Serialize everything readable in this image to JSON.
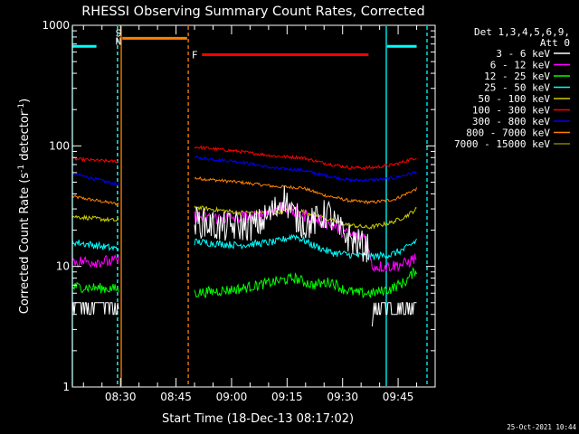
{
  "chart_data": {
    "type": "line",
    "title": "RHESSI Observing Summary Count Rates, Corrected",
    "xlabel": "Start Time (18-Dec-13 08:17:02)",
    "ylabel": "Corrected Count Rate (s",
    "ylabel_sup1": "-1",
    "ylabel_mid": " detector",
    "ylabel_sup2": "-1",
    "ylabel_end": ")",
    "y_scale": "log",
    "ylim": [
      1,
      1000
    ],
    "xlim_minutes": [
      0,
      98
    ],
    "x_ticks": [
      {
        "m": 13,
        "label": "08:30"
      },
      {
        "m": 28,
        "label": "08:45"
      },
      {
        "m": 43,
        "label": "09:00"
      },
      {
        "m": 58,
        "label": "09:15"
      },
      {
        "m": 73,
        "label": "09:30"
      },
      {
        "m": 88,
        "label": "09:45"
      }
    ],
    "y_ticks": [
      {
        "v": 1,
        "label": "1"
      },
      {
        "v": 10,
        "label": "10"
      },
      {
        "v": 100,
        "label": "100"
      },
      {
        "v": 1000,
        "label": "1000"
      }
    ],
    "legend": {
      "header1": "Det 1,3,4,5,6,9,",
      "header2": "Att 0",
      "placement": "right"
    },
    "series": [
      {
        "name": "3 - 6 keV",
        "color": "#ffffff",
        "noise": 0.3,
        "pts": [
          [
            0,
            5
          ],
          [
            10,
            5
          ],
          [
            11,
            5
          ],
          [
            12.5,
            4.5
          ],
          [
            33,
            24
          ],
          [
            40,
            21
          ],
          [
            50,
            22
          ],
          [
            55,
            30
          ],
          [
            57,
            38
          ],
          [
            60,
            26
          ],
          [
            63,
            22
          ],
          [
            66,
            24
          ],
          [
            69,
            28
          ],
          [
            72,
            20
          ],
          [
            75,
            17
          ],
          [
            78,
            15
          ],
          [
            80,
            14
          ],
          [
            81,
            4
          ],
          [
            90,
            4.5
          ],
          [
            93,
            5.5
          ]
        ],
        "gaps": [
          [
            12.5,
            33
          ],
          [
            80,
            81
          ]
        ]
      },
      {
        "name": "6 - 12 keV",
        "color": "#ff00ff",
        "noise": 0.12,
        "pts": [
          [
            0,
            11
          ],
          [
            12,
            11
          ],
          [
            33,
            26
          ],
          [
            40,
            25
          ],
          [
            50,
            26
          ],
          [
            57,
            32
          ],
          [
            60,
            28
          ],
          [
            65,
            25
          ],
          [
            70,
            22
          ],
          [
            75,
            18
          ],
          [
            79,
            18
          ],
          [
            81,
            10
          ],
          [
            85,
            10
          ],
          [
            90,
            10.5
          ],
          [
            93,
            12
          ]
        ],
        "gaps": [
          [
            12.5,
            33
          ]
        ]
      },
      {
        "name": "12 - 25 keV",
        "color": "#00ff00",
        "noise": 0.1,
        "pts": [
          [
            0,
            6.8
          ],
          [
            12,
            6.5
          ],
          [
            33,
            6
          ],
          [
            45,
            6.5
          ],
          [
            55,
            7.5
          ],
          [
            60,
            8
          ],
          [
            65,
            7
          ],
          [
            70,
            7.5
          ],
          [
            73,
            6.5
          ],
          [
            77,
            6
          ],
          [
            81,
            6
          ],
          [
            86,
            6.5
          ],
          [
            90,
            7.5
          ],
          [
            93,
            9.5
          ]
        ],
        "gaps": [
          [
            12.5,
            33
          ]
        ]
      },
      {
        "name": "25 - 50 keV",
        "color": "#00ffff",
        "noise": 0.07,
        "pts": [
          [
            0,
            16
          ],
          [
            12,
            14
          ],
          [
            33,
            16
          ],
          [
            45,
            15
          ],
          [
            55,
            16
          ],
          [
            60,
            18
          ],
          [
            65,
            15
          ],
          [
            70,
            13
          ],
          [
            75,
            12.5
          ],
          [
            80,
            12
          ],
          [
            86,
            12.5
          ],
          [
            90,
            14
          ],
          [
            93,
            16.5
          ]
        ],
        "gaps": [
          [
            12.5,
            33
          ]
        ]
      },
      {
        "name": "50 - 100 keV",
        "color": "#cccc00",
        "noise": 0.04,
        "pts": [
          [
            0,
            26
          ],
          [
            12,
            24
          ],
          [
            33,
            31
          ],
          [
            45,
            28
          ],
          [
            55,
            28
          ],
          [
            60,
            30
          ],
          [
            65,
            27
          ],
          [
            70,
            24
          ],
          [
            75,
            22
          ],
          [
            80,
            21
          ],
          [
            86,
            23
          ],
          [
            90,
            26
          ],
          [
            93,
            30
          ]
        ],
        "gaps": [
          [
            12.5,
            33
          ]
        ]
      },
      {
        "name": "100 - 300 keV",
        "color": "#ff0000",
        "noise": 0.03,
        "pts": [
          [
            0,
            78
          ],
          [
            12,
            74
          ],
          [
            33,
            98
          ],
          [
            45,
            90
          ],
          [
            55,
            82
          ],
          [
            62,
            80
          ],
          [
            68,
            72
          ],
          [
            75,
            66
          ],
          [
            81,
            66
          ],
          [
            87,
            70
          ],
          [
            93,
            80
          ]
        ],
        "gaps": [
          [
            12.5,
            33
          ]
        ]
      },
      {
        "name": "300 - 800 keV",
        "color": "#0000ff",
        "noise": 0.03,
        "pts": [
          [
            0,
            59
          ],
          [
            12,
            48
          ],
          [
            33,
            80
          ],
          [
            45,
            74
          ],
          [
            55,
            65
          ],
          [
            62,
            63
          ],
          [
            68,
            57
          ],
          [
            75,
            52
          ],
          [
            81,
            52
          ],
          [
            87,
            54
          ],
          [
            93,
            61
          ]
        ],
        "gaps": [
          [
            12.5,
            33
          ]
        ]
      },
      {
        "name": "800 - 7000 keV",
        "color": "#ff8000",
        "noise": 0.03,
        "pts": [
          [
            0,
            38
          ],
          [
            12,
            33
          ],
          [
            33,
            54
          ],
          [
            45,
            50
          ],
          [
            55,
            46
          ],
          [
            62,
            45
          ],
          [
            68,
            39
          ],
          [
            75,
            35
          ],
          [
            81,
            34
          ],
          [
            87,
            36
          ],
          [
            93,
            44
          ]
        ],
        "gaps": [
          [
            12.5,
            33
          ]
        ]
      },
      {
        "name": "7000 - 15000 keV",
        "color": "#808000",
        "noise": 0,
        "pts": [],
        "gaps": []
      }
    ],
    "flag_bars": [
      {
        "label": "",
        "color": "#00ffff",
        "x0": 0,
        "x1": 6.5,
        "y": 670
      },
      {
        "label": "",
        "color": "#00ffff",
        "x0": 85,
        "x1": 93,
        "y": 670
      },
      {
        "label": "",
        "color": "#ff8000",
        "x0": 13.5,
        "x1": 31,
        "y": 780
      },
      {
        "label": "F",
        "color": "#ff0000",
        "x0": 35,
        "x1": 80,
        "y": 570
      }
    ],
    "markers": [
      {
        "label": "S",
        "color": "#ff8000",
        "x": 12.2,
        "style": "dash",
        "y": 860
      },
      {
        "label": "N",
        "color": "#00ffff",
        "x": 12.2,
        "style": "dash",
        "y": 740
      },
      {
        "label": "",
        "color": "#ff8000",
        "x": 13.2,
        "style": "solid",
        "y": 0
      },
      {
        "label": "",
        "color": "#ff8000",
        "x": 31.3,
        "style": "dash",
        "y": 0
      },
      {
        "label": "",
        "color": "#00ffff",
        "x": 0,
        "style": "solid",
        "y": 0
      },
      {
        "label": "",
        "color": "#00ffff",
        "x": 84.8,
        "style": "solid",
        "y": 0
      },
      {
        "label": "",
        "color": "#00ffff",
        "x": 95.8,
        "style": "dash",
        "y": 0
      }
    ]
  },
  "footer": {
    "timestamp": "25-Oct-2021 10:44"
  }
}
